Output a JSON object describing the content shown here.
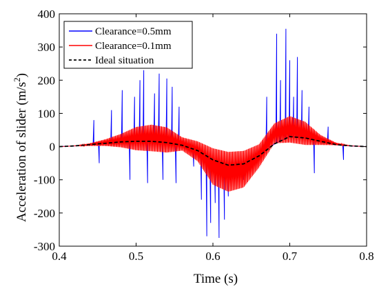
{
  "chart_data": {
    "type": "line",
    "title": "",
    "xlabel": "Time (s)",
    "ylabel_main": "Acceleration of slider (m/s",
    "ylabel_sup": "2",
    "ylabel_close": ")",
    "xlim": [
      0.4,
      0.8
    ],
    "ylim": [
      -300,
      400
    ],
    "xticks": [
      0.4,
      0.5,
      0.6,
      0.7,
      0.8
    ],
    "yticks": [
      -300,
      -200,
      -100,
      0,
      100,
      200,
      300,
      400
    ],
    "xtick_labels": [
      "0.4",
      "0.5",
      "0.6",
      "0.7",
      "0.8"
    ],
    "ytick_labels": [
      "-300",
      "-200",
      "-100",
      "0",
      "100",
      "200",
      "300",
      "400"
    ],
    "grid": false,
    "legend_position": "top-left",
    "series": [
      {
        "name": "Clearance=0.5mm",
        "color": "#0000ff",
        "style": "solid",
        "x": [
          0.4,
          0.42,
          0.44,
          0.46,
          0.48,
          0.5,
          0.52,
          0.54,
          0.56,
          0.58,
          0.6,
          0.62,
          0.64,
          0.66,
          0.68,
          0.7,
          0.72,
          0.74,
          0.76,
          0.78,
          0.8
        ],
        "y": [
          0,
          2,
          6,
          10,
          14,
          16,
          16,
          12,
          4,
          -12,
          -40,
          -56,
          -52,
          -28,
          8,
          30,
          26,
          16,
          6,
          2,
          0
        ],
        "spikes": [
          {
            "x": 0.445,
            "y": 80
          },
          {
            "x": 0.452,
            "y": -50
          },
          {
            "x": 0.468,
            "y": 110
          },
          {
            "x": 0.482,
            "y": 170
          },
          {
            "x": 0.492,
            "y": -100
          },
          {
            "x": 0.498,
            "y": 150
          },
          {
            "x": 0.505,
            "y": 200
          },
          {
            "x": 0.51,
            "y": 230
          },
          {
            "x": 0.515,
            "y": -110
          },
          {
            "x": 0.524,
            "y": 160
          },
          {
            "x": 0.53,
            "y": 220
          },
          {
            "x": 0.535,
            "y": -100
          },
          {
            "x": 0.54,
            "y": 205
          },
          {
            "x": 0.547,
            "y": 180
          },
          {
            "x": 0.552,
            "y": -110
          },
          {
            "x": 0.556,
            "y": 120
          },
          {
            "x": 0.575,
            "y": -60
          },
          {
            "x": 0.585,
            "y": -160
          },
          {
            "x": 0.592,
            "y": -270
          },
          {
            "x": 0.597,
            "y": -230
          },
          {
            "x": 0.603,
            "y": -170
          },
          {
            "x": 0.608,
            "y": -275
          },
          {
            "x": 0.615,
            "y": -220
          },
          {
            "x": 0.62,
            "y": -150
          },
          {
            "x": 0.64,
            "y": -100
          },
          {
            "x": 0.67,
            "y": 150
          },
          {
            "x": 0.683,
            "y": 340
          },
          {
            "x": 0.688,
            "y": 200
          },
          {
            "x": 0.695,
            "y": 355
          },
          {
            "x": 0.7,
            "y": 260
          },
          {
            "x": 0.705,
            "y": 150
          },
          {
            "x": 0.71,
            "y": 270
          },
          {
            "x": 0.716,
            "y": 170
          },
          {
            "x": 0.725,
            "y": 120
          },
          {
            "x": 0.732,
            "y": -80
          },
          {
            "x": 0.75,
            "y": 60
          },
          {
            "x": 0.77,
            "y": -40
          }
        ]
      },
      {
        "name": "Clearance=0.1mm",
        "color": "#ff0000",
        "style": "solid",
        "x": [
          0.4,
          0.42,
          0.44,
          0.46,
          0.48,
          0.5,
          0.52,
          0.54,
          0.56,
          0.58,
          0.6,
          0.62,
          0.64,
          0.66,
          0.68,
          0.7,
          0.72,
          0.74,
          0.76,
          0.78,
          0.8
        ],
        "y": [
          0,
          2,
          6,
          12,
          18,
          24,
          26,
          20,
          8,
          -14,
          -60,
          -76,
          -68,
          -28,
          40,
          52,
          40,
          20,
          8,
          2,
          0
        ],
        "amp": [
          0,
          0,
          4,
          10,
          20,
          35,
          40,
          38,
          20,
          30,
          55,
          60,
          55,
          35,
          30,
          40,
          35,
          15,
          4,
          0,
          0
        ]
      },
      {
        "name": "Ideal situation",
        "color": "#000000",
        "style": "dashed",
        "x": [
          0.4,
          0.42,
          0.44,
          0.46,
          0.48,
          0.5,
          0.52,
          0.54,
          0.56,
          0.58,
          0.6,
          0.62,
          0.64,
          0.66,
          0.68,
          0.7,
          0.72,
          0.74,
          0.76,
          0.78,
          0.8
        ],
        "y": [
          0,
          2,
          6,
          10,
          14,
          16,
          16,
          12,
          4,
          -12,
          -40,
          -56,
          -52,
          -28,
          8,
          30,
          26,
          16,
          6,
          2,
          0
        ]
      }
    ]
  }
}
